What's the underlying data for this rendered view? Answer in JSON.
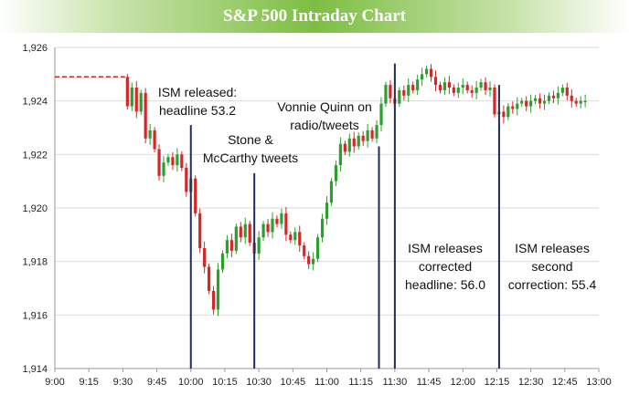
{
  "header": {
    "title": "S&P 500 Intraday Chart"
  },
  "chart_data": {
    "type": "candlestick",
    "title": "S&P 500 Intraday Chart",
    "xlabel": "",
    "ylabel": "",
    "ylim": [
      1914,
      1926
    ],
    "xlim_minutes": [
      0,
      240
    ],
    "y_ticks": [
      "1,926",
      "1,924",
      "1,922",
      "1,920",
      "1,918",
      "1,916",
      "1,914"
    ],
    "y_tick_values": [
      1926,
      1924,
      1922,
      1920,
      1918,
      1916,
      1914
    ],
    "x_ticks": [
      "9:00",
      "9:15",
      "9:30",
      "9:45",
      "10:00",
      "10:15",
      "10:30",
      "10:45",
      "11:00",
      "11:15",
      "11:30",
      "11:45",
      "12:00",
      "12:15",
      "12:30",
      "12:45",
      "13:00"
    ],
    "x_tick_minutes": [
      0,
      15,
      30,
      45,
      60,
      75,
      90,
      105,
      120,
      135,
      150,
      165,
      180,
      195,
      210,
      225,
      240
    ],
    "colors": {
      "up": "#2ca02c",
      "down": "#d62728",
      "prior_close": "#d62728",
      "event_line": "#1f2d5c"
    },
    "prior_close": {
      "value": 1924.9,
      "from_minute": 0,
      "to_minute": 31
    },
    "price_path": [
      [
        31,
        1924.9
      ],
      [
        33,
        1923.8
      ],
      [
        35,
        1924.5
      ],
      [
        37,
        1923.6
      ],
      [
        39,
        1924.3
      ],
      [
        41,
        1922.6
      ],
      [
        43,
        1922.9
      ],
      [
        45,
        1922.2
      ],
      [
        47,
        1921.2
      ],
      [
        49,
        1921.7
      ],
      [
        51,
        1921.9
      ],
      [
        53,
        1921.6
      ],
      [
        55,
        1922.0
      ],
      [
        57,
        1921.5
      ],
      [
        59,
        1920.6
      ],
      [
        61,
        1921.1
      ],
      [
        63,
        1919.8
      ],
      [
        65,
        1918.5
      ],
      [
        67,
        1917.8
      ],
      [
        69,
        1916.9
      ],
      [
        71,
        1916.2
      ],
      [
        73,
        1917.7
      ],
      [
        75,
        1918.3
      ],
      [
        77,
        1918.8
      ],
      [
        79,
        1918.4
      ],
      [
        81,
        1919.3
      ],
      [
        83,
        1918.9
      ],
      [
        85,
        1919.4
      ],
      [
        87,
        1918.7
      ],
      [
        89,
        1918.3
      ],
      [
        91,
        1918.9
      ],
      [
        93,
        1919.4
      ],
      [
        95,
        1919.1
      ],
      [
        97,
        1919.6
      ],
      [
        99,
        1919.4
      ],
      [
        101,
        1919.8
      ],
      [
        103,
        1919.0
      ],
      [
        105,
        1918.8
      ],
      [
        107,
        1919.1
      ],
      [
        109,
        1918.6
      ],
      [
        111,
        1918.2
      ],
      [
        113,
        1917.9
      ],
      [
        115,
        1918.1
      ],
      [
        117,
        1918.9
      ],
      [
        119,
        1919.6
      ],
      [
        121,
        1920.2
      ],
      [
        123,
        1921.0
      ],
      [
        125,
        1921.6
      ],
      [
        127,
        1922.4
      ],
      [
        129,
        1922.1
      ],
      [
        131,
        1922.6
      ],
      [
        133,
        1922.3
      ],
      [
        135,
        1922.7
      ],
      [
        137,
        1922.5
      ],
      [
        139,
        1922.9
      ],
      [
        141,
        1922.6
      ],
      [
        143,
        1923.1
      ],
      [
        145,
        1923.9
      ],
      [
        147,
        1924.6
      ],
      [
        149,
        1924.1
      ],
      [
        151,
        1923.9
      ],
      [
        153,
        1924.4
      ],
      [
        155,
        1924.2
      ],
      [
        157,
        1924.6
      ],
      [
        159,
        1924.4
      ],
      [
        161,
        1924.8
      ],
      [
        163,
        1925.0
      ],
      [
        165,
        1925.2
      ],
      [
        167,
        1924.9
      ],
      [
        169,
        1924.6
      ],
      [
        171,
        1924.4
      ],
      [
        173,
        1924.7
      ],
      [
        175,
        1924.5
      ],
      [
        177,
        1924.3
      ],
      [
        179,
        1924.5
      ],
      [
        181,
        1924.6
      ],
      [
        183,
        1924.4
      ],
      [
        185,
        1924.3
      ],
      [
        187,
        1924.5
      ],
      [
        189,
        1924.7
      ],
      [
        191,
        1924.4
      ],
      [
        193,
        1924.5
      ],
      [
        195,
        1923.5
      ],
      [
        197,
        1923.6
      ],
      [
        199,
        1923.4
      ],
      [
        201,
        1923.8
      ],
      [
        203,
        1923.7
      ],
      [
        205,
        1923.9
      ],
      [
        207,
        1924.0
      ],
      [
        209,
        1923.8
      ],
      [
        211,
        1924.0
      ],
      [
        213,
        1924.1
      ],
      [
        215,
        1923.9
      ],
      [
        217,
        1924.0
      ],
      [
        219,
        1924.2
      ],
      [
        221,
        1924.1
      ],
      [
        223,
        1924.3
      ],
      [
        225,
        1924.5
      ],
      [
        227,
        1924.2
      ],
      [
        229,
        1924.0
      ],
      [
        231,
        1923.9
      ],
      [
        233,
        1924.0
      ],
      [
        235,
        1924.0
      ]
    ],
    "events": [
      {
        "minute": 60,
        "label": [
          "ISM released:",
          "headline 53.2"
        ],
        "label_pos": "top-center",
        "range": [
          1914,
          1923.1
        ]
      },
      {
        "minute": 88,
        "label": [
          "Stone &",
          "McCarthy tweets"
        ],
        "label_pos": "top-center",
        "range": [
          1914,
          1921.3
        ]
      },
      {
        "minute": 143,
        "label": [
          "Vonnie Quinn on",
          "radio/tweets"
        ],
        "label_pos": "top-left",
        "range": [
          1914,
          1922.3
        ]
      },
      {
        "minute": 150,
        "label": [
          "ISM releases",
          "corrected",
          "headline: 56.0"
        ],
        "label_pos": "bottom-center",
        "range": [
          1914,
          1925.4
        ]
      },
      {
        "minute": 196,
        "label": [
          "ISM releases",
          "second",
          "correction: 55.4"
        ],
        "label_pos": "bottom-right",
        "range": [
          1914,
          1924.6
        ]
      }
    ]
  }
}
